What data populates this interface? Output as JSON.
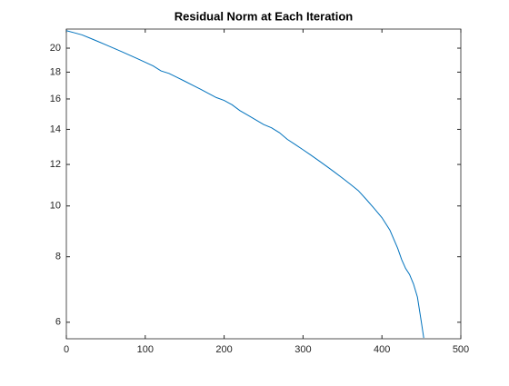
{
  "chart_data": {
    "type": "line",
    "title": "Residual Norm at Each Iteration",
    "x": [
      0,
      10,
      20,
      30,
      40,
      50,
      60,
      70,
      80,
      90,
      100,
      110,
      120,
      130,
      140,
      150,
      160,
      170,
      180,
      190,
      200,
      210,
      220,
      230,
      240,
      250,
      260,
      270,
      280,
      290,
      300,
      310,
      320,
      330,
      340,
      350,
      360,
      370,
      380,
      390,
      400,
      410,
      420,
      425,
      430,
      435,
      440,
      445,
      450,
      453
    ],
    "series": [
      {
        "name": "Residual Norm",
        "color": "#0072bd",
        "values": [
          21.6,
          21.4,
          21.2,
          20.9,
          20.6,
          20.3,
          20.0,
          19.7,
          19.4,
          19.1,
          18.8,
          18.5,
          18.1,
          17.9,
          17.6,
          17.3,
          17.0,
          16.7,
          16.4,
          16.1,
          15.9,
          15.6,
          15.2,
          14.9,
          14.6,
          14.3,
          14.1,
          13.8,
          13.4,
          13.1,
          12.8,
          12.5,
          12.2,
          11.9,
          11.6,
          11.3,
          11.0,
          10.7,
          10.3,
          9.9,
          9.5,
          9.0,
          8.3,
          7.9,
          7.6,
          7.4,
          7.1,
          6.7,
          6.0,
          5.6
        ]
      }
    ],
    "xlim": [
      0,
      500
    ],
    "xticks": [
      0,
      100,
      200,
      300,
      400,
      500
    ],
    "ylim": [
      5.58,
      21.75
    ],
    "yticks": [
      6,
      8,
      10,
      12,
      14,
      16,
      18,
      20
    ],
    "yscale": "log"
  }
}
